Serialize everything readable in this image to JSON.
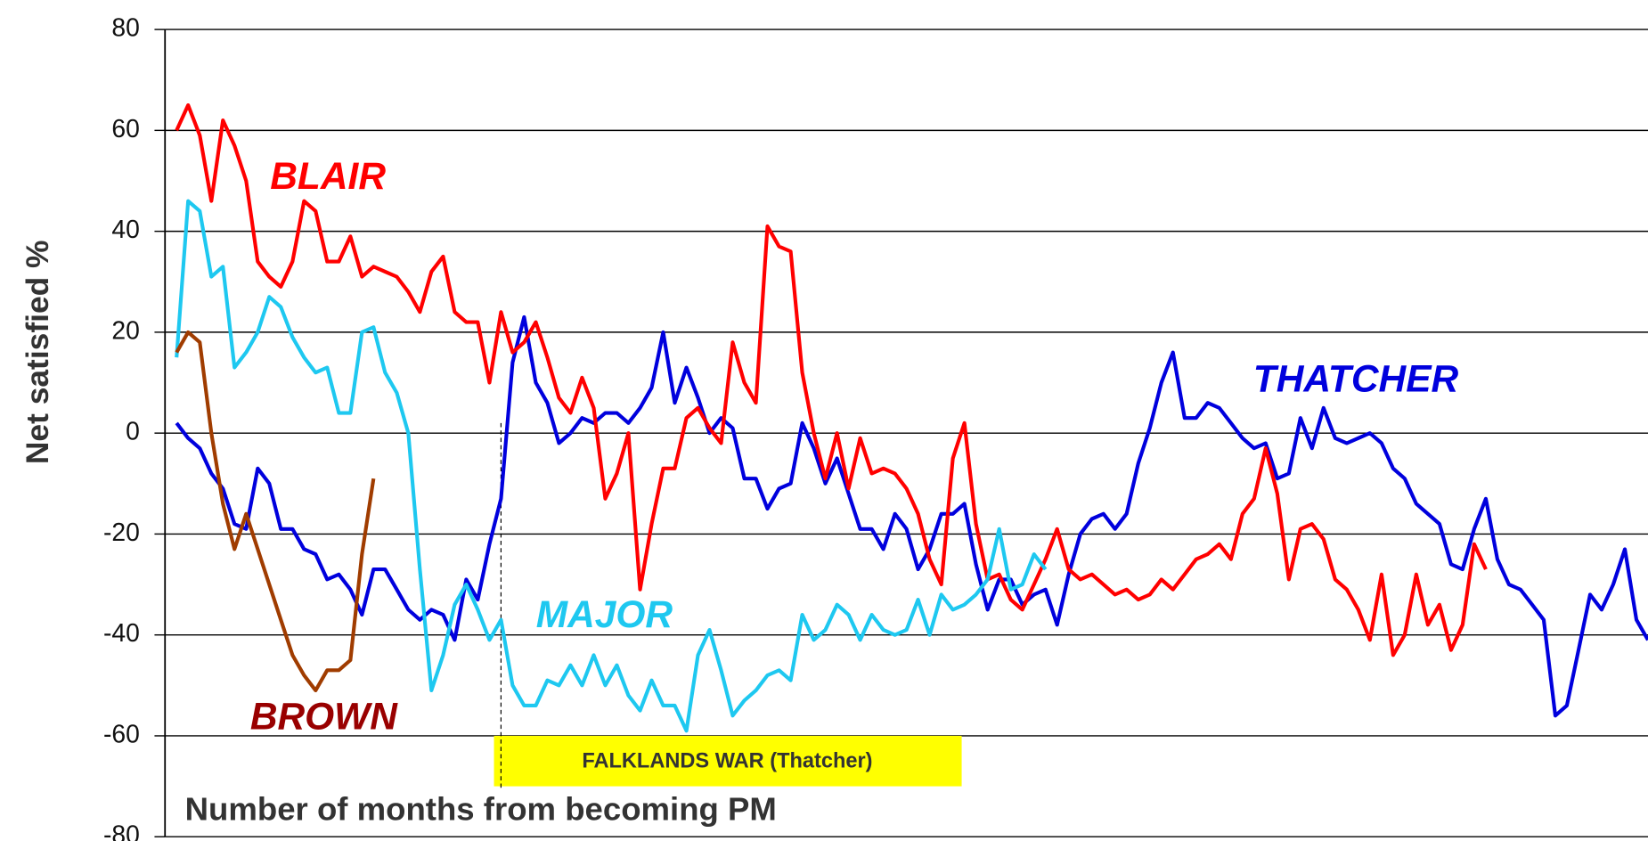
{
  "chart_data": {
    "type": "line",
    "y_label": "Net satisfied %",
    "x_label": "Number of months from becoming PM",
    "ylim": [
      -80,
      80
    ],
    "yticks": [
      -80,
      -60,
      -40,
      -20,
      0,
      20,
      40,
      60,
      80
    ],
    "xlim": [
      0,
      128
    ],
    "grid": true,
    "annotation": {
      "text": "FALKLANDS WAR (Thatcher)",
      "x": 29
    },
    "x": [
      1,
      2,
      3,
      4,
      5,
      6,
      7,
      8,
      9,
      10,
      11,
      12,
      13,
      14,
      15,
      16,
      17,
      18,
      19,
      20,
      21,
      22,
      23,
      24,
      25,
      26,
      27,
      28,
      29,
      30,
      31,
      32,
      33,
      34,
      35,
      36,
      37,
      38,
      39,
      40,
      41,
      42,
      43,
      44,
      45,
      46,
      47,
      48,
      49,
      50,
      51,
      52,
      53,
      54,
      55,
      56,
      57,
      58,
      59,
      60,
      61,
      62,
      63,
      64,
      65,
      66,
      67,
      68,
      69,
      70,
      71,
      72,
      73,
      74,
      75,
      76,
      77,
      78,
      79,
      80,
      81,
      82,
      83,
      84,
      85,
      86,
      87,
      88,
      89,
      90,
      91,
      92,
      93,
      94,
      95,
      96,
      97,
      98,
      99,
      100,
      101,
      102,
      103,
      104,
      105,
      106,
      107,
      108,
      109,
      110,
      111,
      112,
      113,
      114,
      115,
      116,
      117,
      118,
      119,
      120,
      121,
      122,
      123,
      124,
      125,
      126,
      127,
      128
    ],
    "series": [
      {
        "name": "THATCHER",
        "color": "#0000dd",
        "label_color": "#0000dd",
        "values": [
          2,
          -1,
          -3,
          -8,
          -11,
          -18,
          -19,
          -7,
          -10,
          -19,
          -19,
          -23,
          -24,
          -29,
          -28,
          -31,
          -36,
          -27,
          -27,
          -31,
          -35,
          -37,
          -35,
          -36,
          -41,
          -29,
          -33,
          -22,
          -13,
          14,
          23,
          10,
          6,
          -2,
          0,
          3,
          2,
          4,
          4,
          2,
          5,
          9,
          20,
          6,
          13,
          7,
          0,
          3,
          1,
          -9,
          -9,
          -15,
          -11,
          -10,
          2,
          -3,
          -10,
          -5,
          -12,
          -19,
          -19,
          -23,
          -16,
          -19,
          -27,
          -23,
          -16,
          -16,
          -14,
          -26,
          -35,
          -29,
          -29,
          -34,
          -32,
          -31,
          -38,
          -28,
          -20,
          -17,
          -16,
          -19,
          -16,
          -6,
          1,
          10,
          16,
          3,
          3,
          6,
          5,
          2,
          -1,
          -3,
          -2,
          -9,
          -8,
          3,
          -3,
          5,
          -1,
          -2,
          -1,
          0,
          -2,
          -7,
          -9,
          -14,
          -16,
          -18,
          -26,
          -27,
          -19,
          -13,
          -25,
          -30,
          -31,
          -34,
          -37,
          -56,
          -54,
          -43,
          -32,
          -35,
          -30,
          -23,
          -37,
          -41
        ]
      },
      {
        "name": "BLAIR",
        "color": "#ff0000",
        "label_color": "#ff0000",
        "values": [
          60,
          65,
          59,
          46,
          62,
          57,
          50,
          34,
          31,
          29,
          34,
          46,
          44,
          34,
          34,
          39,
          31,
          33,
          32,
          31,
          28,
          24,
          32,
          35,
          24,
          22,
          22,
          10,
          24,
          16,
          18,
          22,
          15,
          7,
          4,
          11,
          5,
          -13,
          -8,
          0,
          -31,
          -18,
          -7,
          -7,
          3,
          5,
          1,
          -2,
          18,
          10,
          6,
          41,
          37,
          36,
          12,
          0,
          -9,
          0,
          -11,
          -1,
          -8,
          -7,
          -8,
          -11,
          -16,
          -25,
          -30,
          -5,
          2,
          -18,
          -29,
          -28,
          -33,
          -35,
          -30,
          -25,
          -19,
          -27,
          -29,
          -28,
          -30,
          -32,
          -31,
          -33,
          -32,
          -29,
          -31,
          -28,
          -25,
          -24,
          -22,
          -25,
          -16,
          -13,
          -3,
          -12,
          -29,
          -19,
          -18,
          -21,
          -29,
          -31,
          -35,
          -41,
          -28,
          -44,
          -40,
          -28,
          -38,
          -34,
          -43,
          -38,
          -22,
          -27,
          null,
          null,
          null,
          null,
          null,
          null,
          null,
          null,
          null,
          null,
          null,
          null,
          null,
          null
        ]
      },
      {
        "name": "MAJOR",
        "color": "#1ec8f0",
        "label_color": "#1ec8f0",
        "values": [
          15,
          46,
          44,
          31,
          33,
          13,
          16,
          20,
          27,
          25,
          19,
          15,
          12,
          13,
          4,
          4,
          20,
          21,
          12,
          8,
          0,
          -27,
          -51,
          -44,
          -34,
          -30,
          -35,
          -41,
          -37,
          -50,
          -54,
          -54,
          -49,
          -50,
          -46,
          -50,
          -44,
          -50,
          -46,
          -52,
          -55,
          -49,
          -54,
          -54,
          -59,
          -44,
          -39,
          -47,
          -56,
          -53,
          -51,
          -48,
          -47,
          -49,
          -36,
          -41,
          -39,
          -34,
          -36,
          -41,
          -36,
          -39,
          -40,
          -39,
          -33,
          -40,
          -32,
          -35,
          -34,
          -32,
          -29,
          -19,
          -31,
          -30,
          -24,
          -27,
          null,
          null,
          null,
          null,
          null,
          null,
          null,
          null,
          null,
          null,
          null,
          null,
          null,
          null,
          null,
          null,
          null,
          null,
          null,
          null,
          null,
          null,
          null,
          null,
          null,
          null,
          null,
          null,
          null,
          null,
          null,
          null,
          null,
          null,
          null,
          null,
          null,
          null,
          null,
          null,
          null,
          null,
          null,
          null,
          null,
          null,
          null,
          null,
          null,
          null,
          null,
          null
        ]
      },
      {
        "name": "BROWN",
        "color": "#a03c00",
        "label_color": "#990000",
        "values": [
          16,
          20,
          18,
          0,
          -14,
          -23,
          -16,
          -23,
          -30,
          -37,
          -44,
          -48,
          -51,
          -47,
          -47,
          -45,
          -24,
          -9,
          null,
          null,
          null,
          null,
          null,
          null,
          null,
          null,
          null,
          null,
          null,
          null,
          null,
          null,
          null,
          null,
          null,
          null,
          null,
          null,
          null,
          null,
          null,
          null,
          null,
          null,
          null,
          null,
          null,
          null,
          null,
          null,
          null,
          null,
          null,
          null,
          null,
          null,
          null,
          null,
          null,
          null,
          null,
          null,
          null,
          null,
          null,
          null,
          null,
          null,
          null,
          null,
          null,
          null,
          null,
          null,
          null,
          null,
          null,
          null,
          null,
          null,
          null,
          null,
          null,
          null,
          null,
          null,
          null,
          null,
          null,
          null,
          null,
          null,
          null,
          null,
          null,
          null,
          null,
          null,
          null,
          null,
          null,
          null,
          null,
          null,
          null,
          null,
          null,
          null,
          null,
          null,
          null,
          null,
          null,
          null,
          null,
          null,
          null,
          null,
          null,
          null,
          null,
          null,
          null,
          null,
          null,
          null,
          null,
          null
        ]
      }
    ]
  }
}
